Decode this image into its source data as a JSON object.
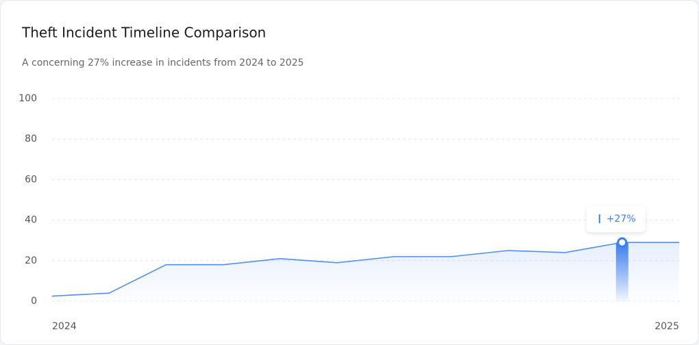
{
  "chart_data": {
    "type": "line",
    "title": "Theft Incident Timeline Comparison",
    "subtitle": "A concerning 27% increase in incidents from 2024 to 2025",
    "categories": [
      "2024",
      null,
      null,
      null,
      null,
      null,
      null,
      null,
      null,
      null,
      null,
      "2025"
    ],
    "values": [
      2.5,
      4,
      18,
      18,
      21,
      19,
      22,
      22,
      25,
      24,
      29,
      29
    ],
    "color": "#4f8ef7",
    "ylim": [
      0,
      100
    ],
    "yticks": [
      0,
      20,
      40,
      60,
      80,
      100
    ],
    "grid": true,
    "annotation": "+27%"
  }
}
